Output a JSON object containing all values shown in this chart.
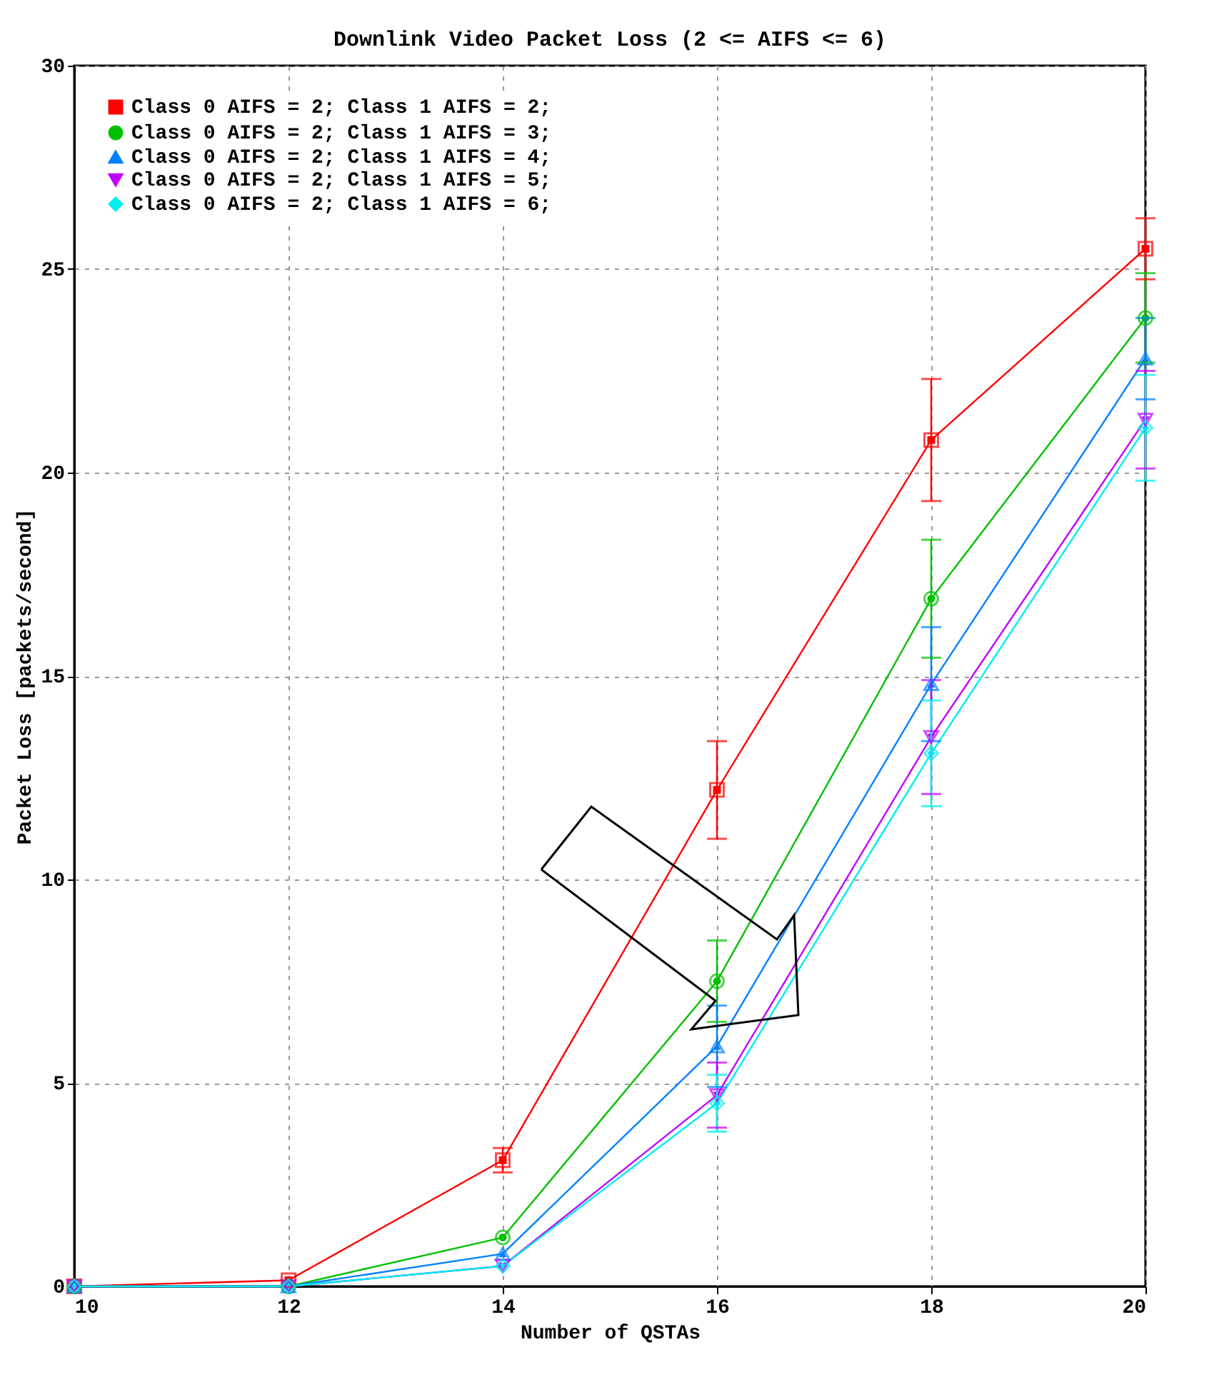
{
  "chart_data": {
    "type": "line",
    "title": "Downlink Video Packet Loss (2 <= AIFS <= 6)",
    "xlabel": "Number of QSTAs",
    "ylabel": "Packet Loss [packets/second]",
    "x": [
      10,
      12,
      14,
      16,
      18,
      20
    ],
    "xlim": [
      10,
      20
    ],
    "xticks": [
      10,
      12,
      14,
      16,
      18,
      20
    ],
    "ylim": [
      0,
      30
    ],
    "yticks": [
      0,
      5,
      10,
      15,
      20,
      25,
      30
    ],
    "grid": true,
    "legend": "top left",
    "line_style": "solid",
    "series": [
      {
        "name": "Class 0 AIFS = 2; Class 1 AIFS = 2;",
        "color": "#ff0000",
        "marker": "square",
        "values": [
          0,
          0.15,
          3.1,
          12.2,
          20.8,
          25.5
        ],
        "errors": [
          null,
          null,
          0.3,
          1.2,
          1.5,
          0.75
        ]
      },
      {
        "name": "Class 0 AIFS = 2; Class 1 AIFS = 3;",
        "color": "#00c000",
        "marker": "circle",
        "values": [
          0,
          0,
          1.2,
          7.5,
          16.9,
          23.8
        ],
        "errors": [
          null,
          null,
          null,
          1.0,
          1.45,
          1.1
        ]
      },
      {
        "name": "Class 0 AIFS = 2; Class 1 AIFS = 4;",
        "color": "#0080ff",
        "marker": "triangle",
        "values": [
          0,
          0,
          0.8,
          5.9,
          14.8,
          22.8
        ],
        "errors": [
          null,
          null,
          null,
          1.0,
          1.4,
          1.0
        ]
      },
      {
        "name": "Class 0 AIFS = 2; Class 1 AIFS = 5;",
        "color": "#c000ff",
        "marker": "triangle-down",
        "values": [
          0,
          0,
          0.5,
          4.7,
          13.5,
          21.3
        ],
        "errors": [
          null,
          null,
          null,
          0.8,
          1.4,
          1.2
        ]
      },
      {
        "name": "Class 0 AIFS = 2; Class 1 AIFS = 6;",
        "color": "#00eeee",
        "marker": "diamond",
        "values": [
          0,
          0,
          0.5,
          4.5,
          13.1,
          21.1
        ],
        "errors": [
          null,
          null,
          null,
          0.7,
          1.3,
          1.3
        ]
      }
    ]
  }
}
